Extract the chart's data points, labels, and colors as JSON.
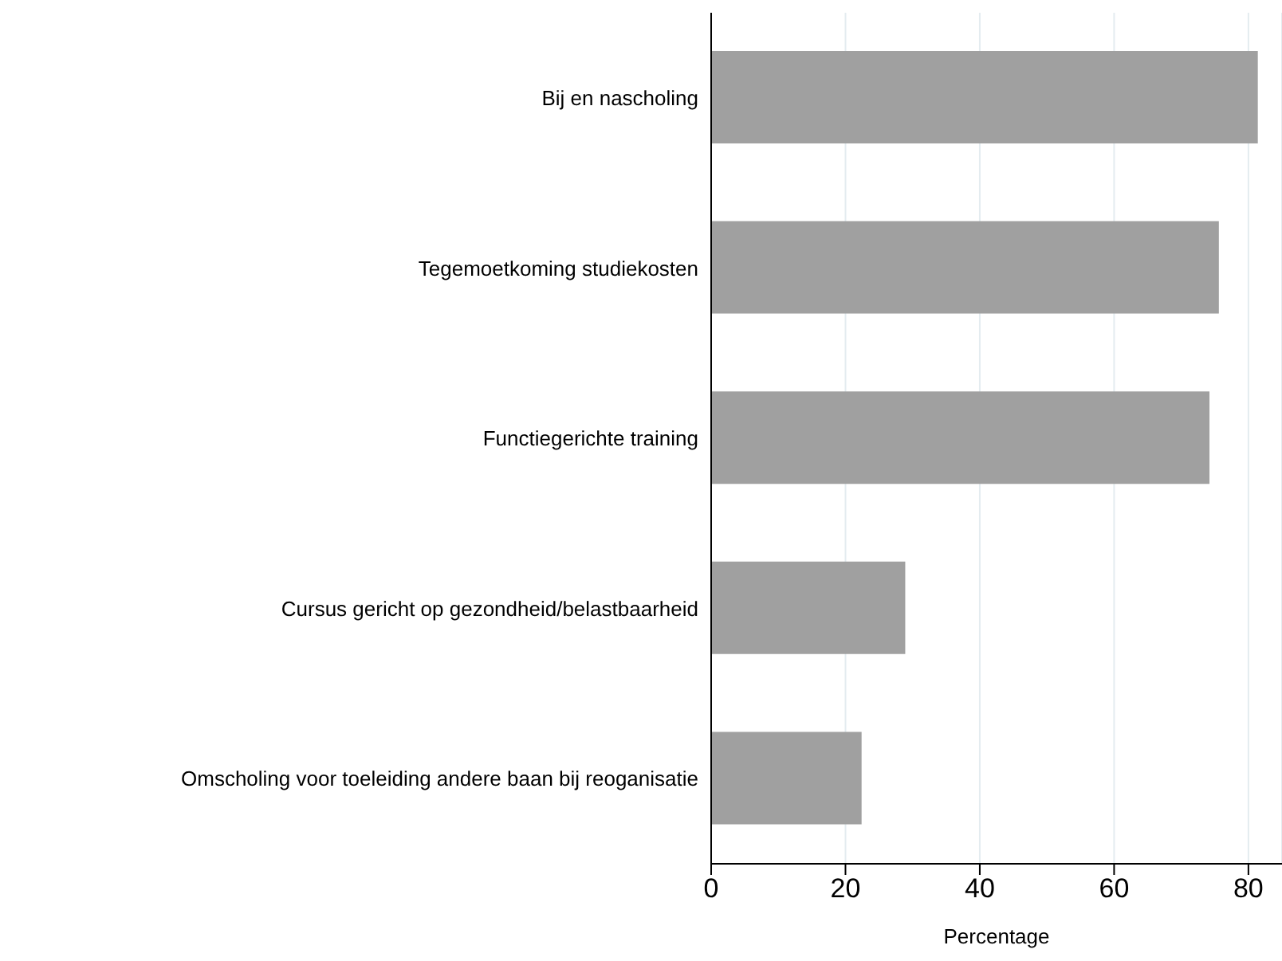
{
  "chart_data": {
    "type": "bar",
    "orientation": "horizontal",
    "xlabel": "Percentage",
    "categories": [
      "Bij en nascholing",
      "Tegemoetkoming studiekosten",
      "Functiegerichte training",
      "Cursus gericht op gezondheid/belastbaarheid",
      "Omscholing voor toeleiding andere baan bij reoganisatie"
    ],
    "values": [
      81.4,
      75.6,
      74.2,
      28.9,
      22.4
    ],
    "color": "#a0a0a0",
    "xlim": [
      0,
      85
    ],
    "xticks": [
      0,
      20,
      40,
      60,
      80
    ],
    "grid": "x"
  }
}
